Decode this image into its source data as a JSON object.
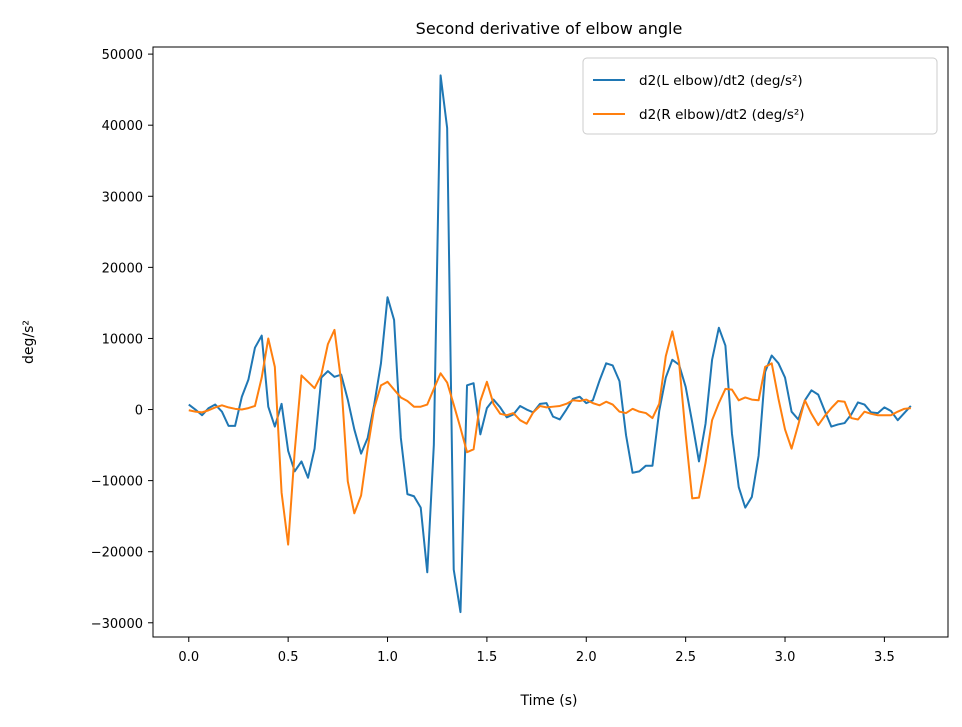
{
  "chart_data": {
    "type": "line",
    "title": "Second derivative of elbow angle",
    "xlabel": "Time (s)",
    "ylabel": "deg/s²",
    "xlim": [
      -0.18,
      3.82
    ],
    "ylim": [
      -32000,
      51000
    ],
    "xticks": [
      0.0,
      0.5,
      1.0,
      1.5,
      2.0,
      2.5,
      3.0,
      3.5
    ],
    "xtick_labels": [
      "0.0",
      "0.5",
      "1.0",
      "1.5",
      "2.0",
      "2.5",
      "3.0",
      "3.5"
    ],
    "yticks": [
      -30000,
      -20000,
      -10000,
      0,
      10000,
      20000,
      30000,
      40000,
      50000
    ],
    "ytick_labels": [
      "−30000",
      "−20000",
      "−10000",
      "0",
      "10000",
      "20000",
      "30000",
      "40000",
      "50000"
    ],
    "grid": false,
    "legend_position": "top-right",
    "series": [
      {
        "name": "d2(L elbow)/dt2 (deg/s²)",
        "color": "#1f77b4",
        "x": [
          0.0,
          0.033,
          0.067,
          0.1,
          0.133,
          0.167,
          0.2,
          0.233,
          0.267,
          0.3,
          0.333,
          0.367,
          0.4,
          0.433,
          0.467,
          0.5,
          0.533,
          0.567,
          0.6,
          0.633,
          0.667,
          0.7,
          0.733,
          0.767,
          0.8,
          0.833,
          0.867,
          0.9,
          0.933,
          0.967,
          1.0,
          1.033,
          1.067,
          1.1,
          1.133,
          1.167,
          1.2,
          1.233,
          1.267,
          1.3,
          1.333,
          1.367,
          1.4,
          1.433,
          1.467,
          1.5,
          1.533,
          1.567,
          1.6,
          1.633,
          1.667,
          1.7,
          1.733,
          1.767,
          1.8,
          1.833,
          1.867,
          1.9,
          1.933,
          1.967,
          2.0,
          2.033,
          2.067,
          2.1,
          2.133,
          2.167,
          2.2,
          2.233,
          2.267,
          2.3,
          2.333,
          2.367,
          2.4,
          2.433,
          2.467,
          2.5,
          2.533,
          2.567,
          2.6,
          2.633,
          2.667,
          2.7,
          2.733,
          2.767,
          2.8,
          2.833,
          2.867,
          2.9,
          2.933,
          2.967,
          3.0,
          3.033,
          3.067,
          3.1,
          3.133,
          3.167,
          3.2,
          3.233,
          3.267,
          3.3,
          3.333,
          3.367,
          3.4,
          3.433,
          3.467,
          3.5,
          3.533,
          3.567,
          3.6,
          3.633
        ],
        "values": [
          700,
          0,
          -800,
          200,
          700,
          -300,
          -2300,
          -2300,
          1800,
          4200,
          8700,
          10400,
          400,
          -2400,
          800,
          -5800,
          -8700,
          -7300,
          -9600,
          -5500,
          4500,
          5400,
          4600,
          4900,
          1400,
          -2800,
          -6200,
          -4000,
          700,
          6500,
          15800,
          12600,
          -4000,
          -11900,
          -12200,
          -13800,
          -22900,
          -5000,
          47000,
          39600,
          -22500,
          -28500,
          3400,
          3700,
          -3500,
          200,
          1400,
          300,
          -1100,
          -700,
          500,
          0,
          -400,
          800,
          900,
          -1000,
          -1400,
          0,
          1500,
          1800,
          900,
          1300,
          4100,
          6500,
          6200,
          4000,
          -3600,
          -8900,
          -8700,
          -7900,
          -7900,
          -200,
          4500,
          7000,
          6300,
          3200,
          -1800,
          -7300,
          -2000,
          7000,
          11500,
          9000,
          -3400,
          -10900,
          -13800,
          -12300,
          -6500,
          5300,
          7600,
          6500,
          4500,
          -300,
          -1400,
          1300,
          2700,
          2100,
          -200,
          -2400,
          -2100,
          -1900,
          -700,
          1000,
          700,
          -400,
          -500,
          300,
          -200,
          -1500,
          -500,
          500
        ]
      },
      {
        "name": "d2(R elbow)/dt2 (deg/s²)",
        "color": "#ff7f0e",
        "x": [
          0.0,
          0.033,
          0.067,
          0.1,
          0.133,
          0.167,
          0.2,
          0.233,
          0.267,
          0.3,
          0.333,
          0.367,
          0.4,
          0.433,
          0.467,
          0.5,
          0.533,
          0.567,
          0.6,
          0.633,
          0.667,
          0.7,
          0.733,
          0.767,
          0.8,
          0.833,
          0.867,
          0.9,
          0.933,
          0.967,
          1.0,
          1.033,
          1.067,
          1.1,
          1.133,
          1.167,
          1.2,
          1.233,
          1.267,
          1.3,
          1.333,
          1.367,
          1.4,
          1.433,
          1.467,
          1.5,
          1.533,
          1.567,
          1.6,
          1.633,
          1.667,
          1.7,
          1.733,
          1.767,
          1.8,
          1.833,
          1.867,
          1.9,
          1.933,
          1.967,
          2.0,
          2.033,
          2.067,
          2.1,
          2.133,
          2.167,
          2.2,
          2.233,
          2.267,
          2.3,
          2.333,
          2.367,
          2.4,
          2.433,
          2.467,
          2.5,
          2.533,
          2.567,
          2.6,
          2.633,
          2.667,
          2.7,
          2.733,
          2.767,
          2.8,
          2.833,
          2.867,
          2.9,
          2.933,
          2.967,
          3.0,
          3.033,
          3.067,
          3.1,
          3.133,
          3.167,
          3.2,
          3.233,
          3.267,
          3.3,
          3.333,
          3.367,
          3.4,
          3.433,
          3.467,
          3.5,
          3.533,
          3.567,
          3.6,
          3.633
        ],
        "values": [
          -100,
          -300,
          -400,
          -100,
          300,
          600,
          300,
          100,
          0,
          200,
          500,
          4500,
          10000,
          6000,
          -11700,
          -19000,
          -5900,
          4800,
          3900,
          3000,
          4900,
          9200,
          11200,
          3900,
          -10100,
          -14600,
          -12100,
          -5500,
          200,
          3400,
          3900,
          2800,
          1700,
          1200,
          400,
          400,
          700,
          2900,
          5100,
          3800,
          700,
          -2600,
          -6000,
          -5600,
          1200,
          3900,
          800,
          -600,
          -800,
          -500,
          -1500,
          -2000,
          -400,
          500,
          300,
          400,
          500,
          800,
          1300,
          1200,
          1400,
          900,
          600,
          1100,
          700,
          -300,
          -500,
          100,
          -300,
          -500,
          -1200,
          800,
          7500,
          11000,
          6600,
          -3500,
          -12500,
          -12400,
          -7500,
          -1500,
          900,
          2900,
          2800,
          1300,
          1700,
          1400,
          1300,
          6000,
          6500,
          1500,
          -2800,
          -5500,
          -2100,
          1300,
          -600,
          -2200,
          -900,
          200,
          1200,
          1100,
          -1200,
          -1400,
          -300,
          -600,
          -800,
          -800,
          -800,
          -300,
          100,
          200
        ]
      }
    ]
  }
}
